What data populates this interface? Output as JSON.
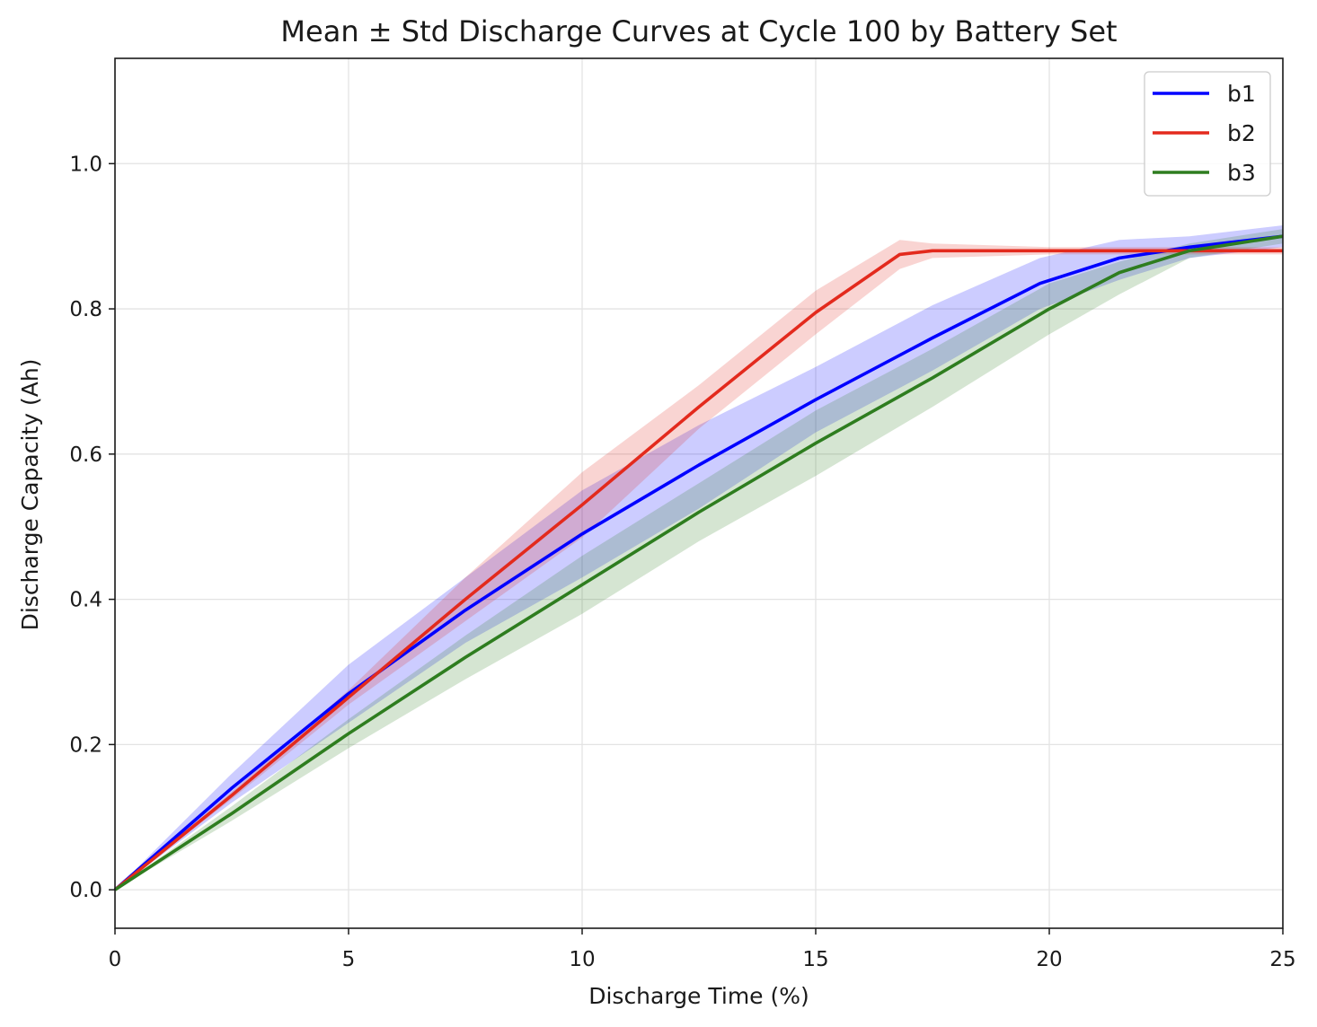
{
  "chart_data": {
    "type": "line",
    "title": "Mean ± Std Discharge Curves at Cycle 100 by Battery Set",
    "xlabel": "Discharge Time (%)",
    "ylabel": "Discharge Capacity (Ah)",
    "xlim": [
      0,
      25
    ],
    "ylim": [
      -0.053,
      1.145
    ],
    "xticks": [
      0,
      5,
      10,
      15,
      20,
      25
    ],
    "xtick_labels": [
      "0",
      "5",
      "10",
      "15",
      "20",
      "25"
    ],
    "yticks": [
      0.0,
      0.2,
      0.4,
      0.6,
      0.8,
      1.0
    ],
    "ytick_labels": [
      "0.0",
      "0.2",
      "0.4",
      "0.6",
      "0.8",
      "1.0"
    ],
    "grid": true,
    "legend_position": "top-right",
    "series": [
      {
        "name": "b1",
        "color": "#0000ff",
        "x": [
          0,
          2.5,
          5,
          7.5,
          10,
          12.5,
          15,
          17.5,
          19.8,
          21.5,
          23,
          25
        ],
        "y": [
          0,
          0.14,
          0.27,
          0.385,
          0.49,
          0.585,
          0.675,
          0.76,
          0.835,
          0.87,
          0.885,
          0.9
        ],
        "y_upper": [
          0,
          0.16,
          0.31,
          0.43,
          0.55,
          0.64,
          0.72,
          0.805,
          0.87,
          0.895,
          0.9,
          0.915
        ],
        "y_lower": [
          0,
          0.12,
          0.23,
          0.34,
          0.43,
          0.525,
          0.63,
          0.715,
          0.8,
          0.84,
          0.87,
          0.885
        ]
      },
      {
        "name": "b2",
        "color": "#e32a1d",
        "x": [
          0,
          2.5,
          5,
          7.5,
          10,
          12.5,
          15,
          16.8,
          17.5,
          20,
          22.5,
          25
        ],
        "y": [
          0,
          0.13,
          0.265,
          0.4,
          0.53,
          0.665,
          0.795,
          0.875,
          0.88,
          0.88,
          0.88,
          0.88
        ],
        "y_upper": [
          0,
          0.135,
          0.275,
          0.43,
          0.575,
          0.695,
          0.825,
          0.895,
          0.89,
          0.885,
          0.885,
          0.885
        ],
        "y_lower": [
          0,
          0.125,
          0.255,
          0.37,
          0.485,
          0.635,
          0.765,
          0.855,
          0.87,
          0.875,
          0.875,
          0.875
        ]
      },
      {
        "name": "b3",
        "color": "#2e7d1f",
        "x": [
          0,
          2.5,
          5,
          7.5,
          10,
          12.5,
          15,
          17.5,
          20,
          21.5,
          23,
          25
        ],
        "y": [
          0,
          0.105,
          0.215,
          0.32,
          0.42,
          0.52,
          0.615,
          0.705,
          0.8,
          0.85,
          0.88,
          0.9
        ],
        "y_upper": [
          0,
          0.115,
          0.235,
          0.35,
          0.46,
          0.56,
          0.66,
          0.745,
          0.835,
          0.865,
          0.89,
          0.91
        ],
        "y_lower": [
          0,
          0.095,
          0.195,
          0.29,
          0.38,
          0.48,
          0.57,
          0.665,
          0.765,
          0.82,
          0.87,
          0.89
        ]
      }
    ]
  }
}
